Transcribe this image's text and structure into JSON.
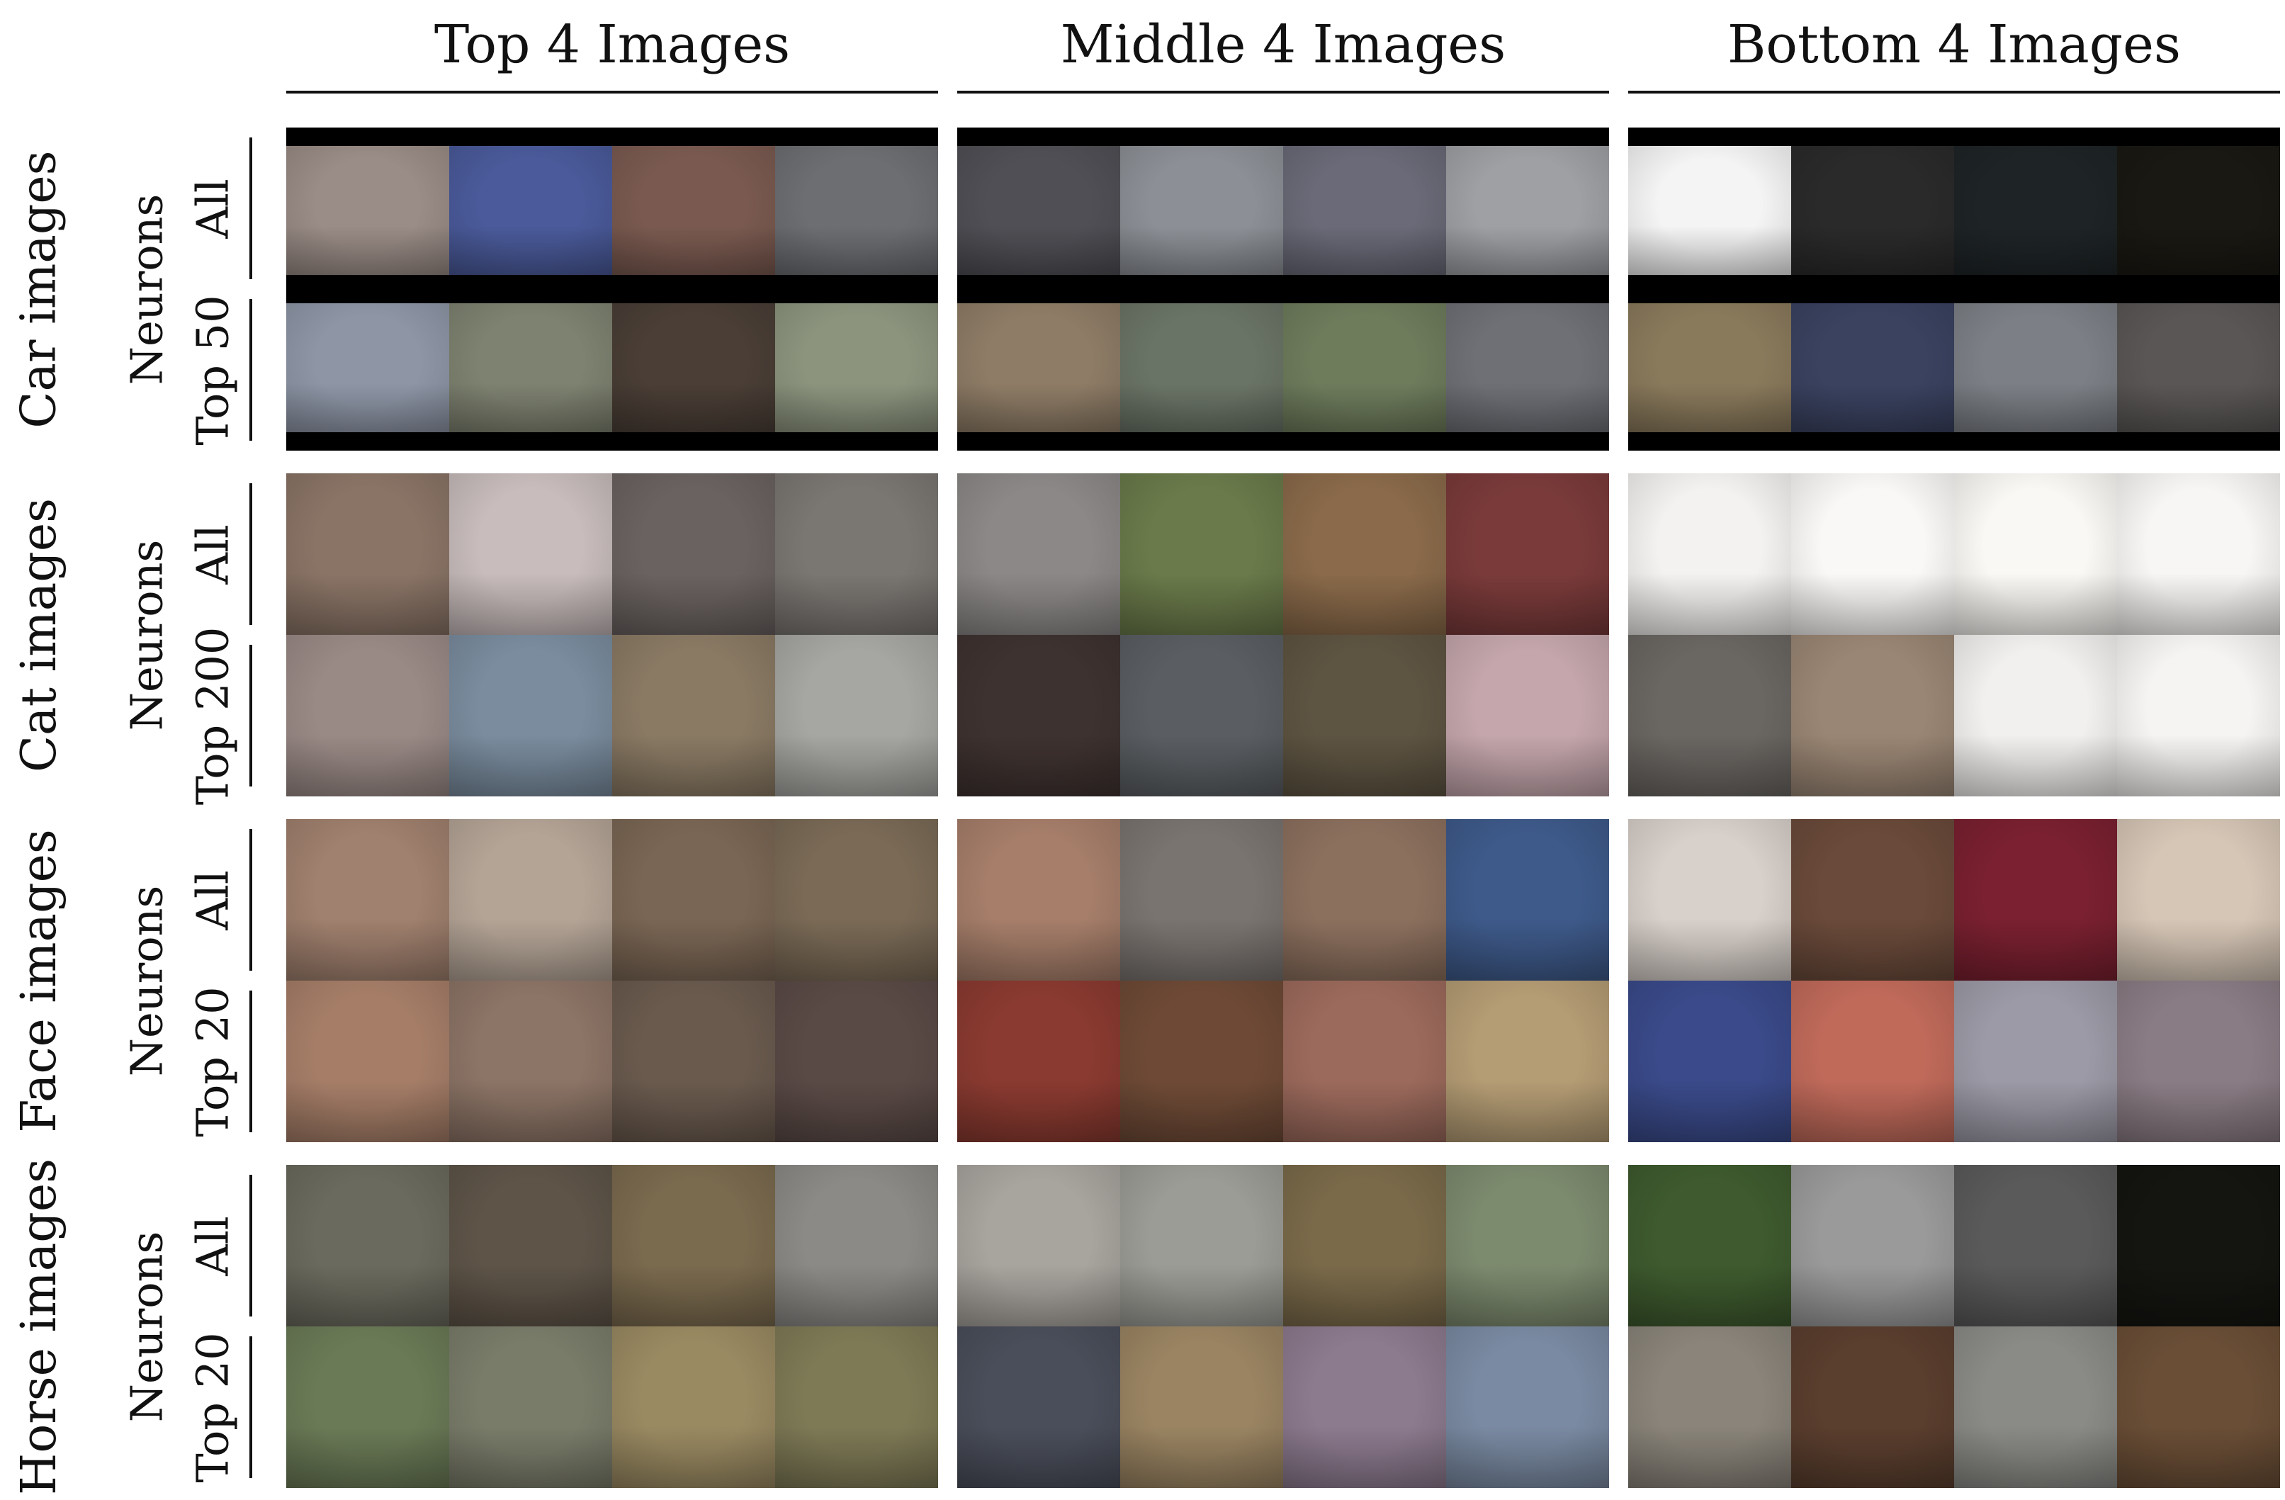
{
  "columns": [
    {
      "title": "Top 4 Images"
    },
    {
      "title": "Middle 4 Images"
    },
    {
      "title": "Bottom 4 Images"
    }
  ],
  "neurons_label": "Neurons",
  "groups": [
    {
      "label": "Car images",
      "rows": [
        {
          "label": "All",
          "panels": [
            {
              "letterbox": true,
              "colors": [
                "#9a8c86",
                "#4a5a9a",
                "#7a5a50",
                "#6c6e72"
              ]
            },
            {
              "letterbox": true,
              "colors": [
                "#4f4f55",
                "#8c9096",
                "#6a6a78",
                "#9ea0a4"
              ]
            },
            {
              "letterbox": true,
              "colors": [
                "#f4f4f4",
                "#2a2a2a",
                "#1e2426",
                "#1a1812"
              ]
            }
          ]
        },
        {
          "label": "Top 50",
          "panels": [
            {
              "letterbox": true,
              "colors": [
                "#8e96a6",
                "#7e8270",
                "#4a3e36",
                "#8c947e"
              ]
            },
            {
              "letterbox": true,
              "colors": [
                "#8e7c66",
                "#6a7466",
                "#6e7c5c",
                "#6e7076"
              ]
            },
            {
              "letterbox": true,
              "colors": [
                "#8a7a5c",
                "#3a4260",
                "#7c8086",
                "#5a5656"
              ]
            }
          ]
        }
      ]
    },
    {
      "label": "Cat images",
      "rows": [
        {
          "label": "All",
          "panels": [
            {
              "letterbox": false,
              "colors": [
                "#8a7466",
                "#c8bcbc",
                "#6a6260",
                "#7a7672"
              ]
            },
            {
              "letterbox": false,
              "colors": [
                "#8c8888",
                "#6a7a4a",
                "#8a6a4a",
                "#7a3a3a"
              ]
            },
            {
              "letterbox": false,
              "colors": [
                "#f4f2f0",
                "#faf8f6",
                "#faf8f4",
                "#f8f6f4"
              ]
            }
          ]
        },
        {
          "label": "Top 200",
          "panels": [
            {
              "letterbox": false,
              "colors": [
                "#9a8a86",
                "#7a8c9e",
                "#8a7a64",
                "#a6a6a2"
              ]
            },
            {
              "letterbox": false,
              "colors": [
                "#3e3230",
                "#5a5e62",
                "#5e5442",
                "#c4a6ac"
              ]
            },
            {
              "letterbox": false,
              "colors": [
                "#6a6662",
                "#9a8674",
                "#f2f0ee",
                "#f6f4f2"
              ]
            }
          ]
        }
      ]
    },
    {
      "label": "Face images",
      "rows": [
        {
          "label": "All",
          "panels": [
            {
              "letterbox": false,
              "colors": [
                "#a0806e",
                "#b4a496",
                "#7a6654",
                "#7a6a56"
              ]
            },
            {
              "letterbox": false,
              "colors": [
                "#a67e6a",
                "#7a7470",
                "#8c705e",
                "#3e5a8a"
              ]
            },
            {
              "letterbox": false,
              "colors": [
                "#d8d0ca",
                "#6a4a3a",
                "#7a2030",
                "#d6c6b6"
              ]
            }
          ]
        },
        {
          "label": "Top 20",
          "panels": [
            {
              "letterbox": false,
              "colors": [
                "#a67e68",
                "#8c7466",
                "#6a5a4e",
                "#5a4a46"
              ]
            },
            {
              "letterbox": false,
              "colors": [
                "#8a3a30",
                "#6e4a36",
                "#9c6a5c",
                "#b49c74"
              ]
            },
            {
              "letterbox": false,
              "colors": [
                "#3a4a8a",
                "#c06a5a",
                "#9c9aa6",
                "#8a7c84"
              ]
            }
          ]
        }
      ]
    },
    {
      "label": "Horse images",
      "rows": [
        {
          "label": "All",
          "panels": [
            {
              "letterbox": false,
              "colors": [
                "#6a6a5e",
                "#5e5448",
                "#7a6a4e",
                "#8c8a86"
              ]
            },
            {
              "letterbox": false,
              "colors": [
                "#a8a49e",
                "#9c9c96",
                "#7a6a4a",
                "#7c8a6e"
              ]
            },
            {
              "letterbox": false,
              "colors": [
                "#3e5a2e",
                "#9a9a9a",
                "#5a5a5a",
                "#141410"
              ]
            }
          ]
        },
        {
          "label": "Top 20",
          "panels": [
            {
              "letterbox": false,
              "colors": [
                "#6a7a56",
                "#7a7c6a",
                "#9a8a62",
                "#7e7a56"
              ]
            },
            {
              "letterbox": false,
              "colors": [
                "#4a4e5a",
                "#9a8462",
                "#8c7a8e",
                "#7a8aa2"
              ]
            },
            {
              "letterbox": false,
              "colors": [
                "#8a847a",
                "#5a3e2e",
                "#8a8a86",
                "#6a4e36"
              ]
            }
          ]
        }
      ]
    }
  ]
}
